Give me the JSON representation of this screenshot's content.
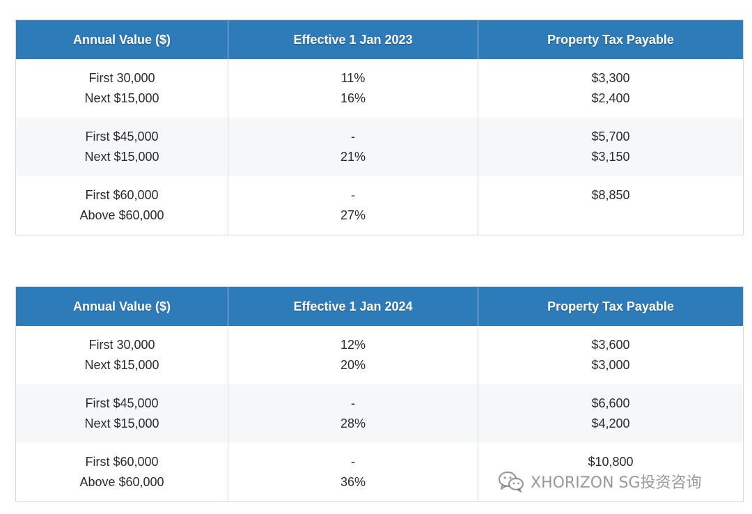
{
  "tables": [
    {
      "headers": [
        "Annual Value ($)",
        "Effective 1 Jan 2023",
        "Property Tax Payable"
      ],
      "rows": [
        {
          "annual_value": [
            "First 30,000",
            "Next $15,000"
          ],
          "rate": [
            "11%",
            "16%"
          ],
          "payable": [
            "$3,300",
            "$2,400"
          ]
        },
        {
          "annual_value": [
            "First $45,000",
            "Next $15,000"
          ],
          "rate": [
            "-",
            "21%"
          ],
          "payable": [
            "$5,700",
            "$3,150"
          ]
        },
        {
          "annual_value": [
            "First $60,000",
            "Above $60,000"
          ],
          "rate": [
            "-",
            "27%"
          ],
          "payable": [
            "$8,850",
            ""
          ]
        }
      ]
    },
    {
      "headers": [
        "Annual Value ($)",
        "Effective 1 Jan 2024",
        "Property Tax Payable"
      ],
      "rows": [
        {
          "annual_value": [
            "First 30,000",
            "Next $15,000"
          ],
          "rate": [
            "12%",
            "20%"
          ],
          "payable": [
            "$3,600",
            "$3,000"
          ]
        },
        {
          "annual_value": [
            "First $45,000",
            "Next $15,000"
          ],
          "rate": [
            "-",
            "28%"
          ],
          "payable": [
            "$6,600",
            "$4,200"
          ]
        },
        {
          "annual_value": [
            "First $60,000",
            "Above $60,000"
          ],
          "rate": [
            "-",
            "36%"
          ],
          "payable": [
            "$10,800",
            ""
          ]
        }
      ]
    }
  ],
  "watermark": {
    "icon": "wechat-icon",
    "text": "XHORIZON SG投资咨询"
  }
}
